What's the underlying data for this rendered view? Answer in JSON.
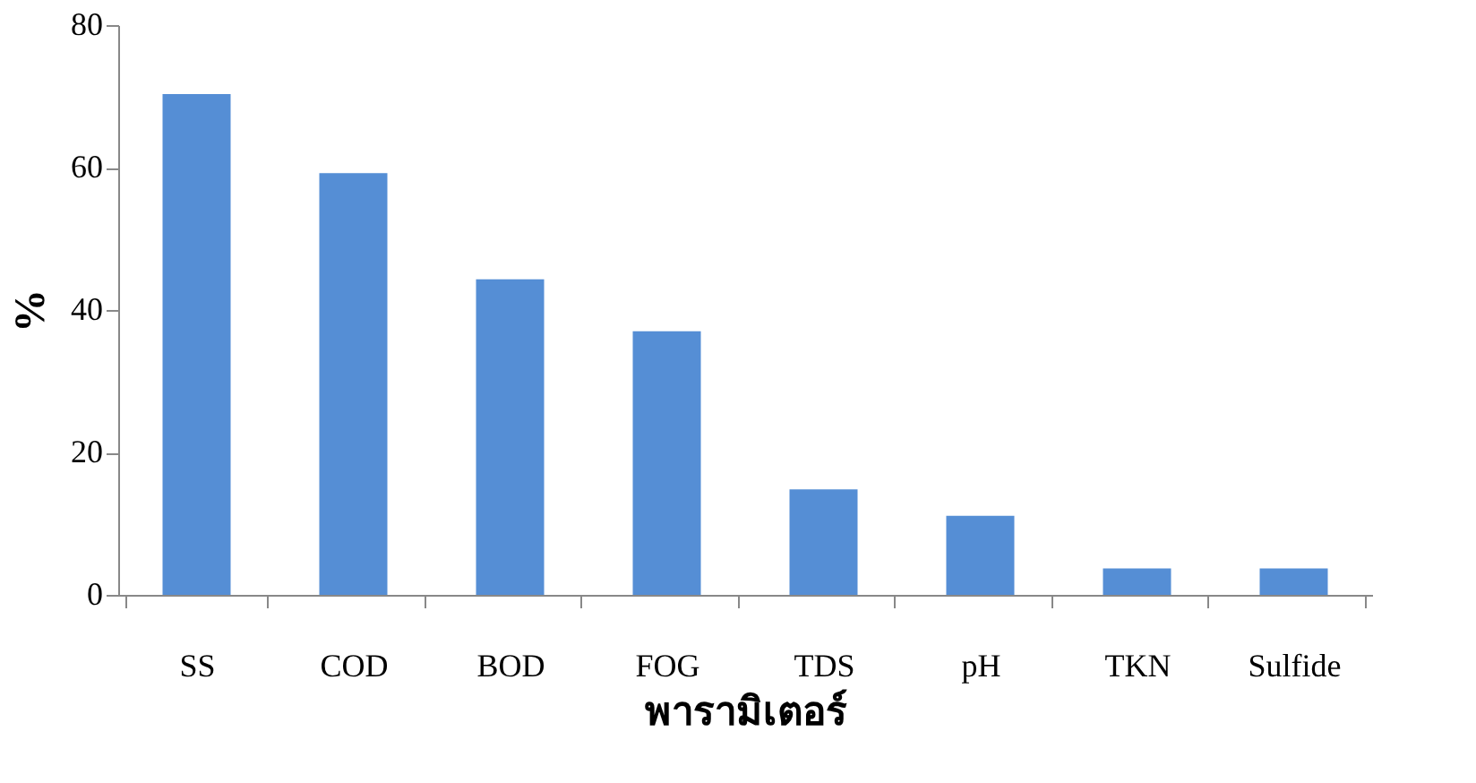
{
  "chart_data": {
    "type": "bar",
    "xlabel": "พารามิเตอร์",
    "ylabel": "%",
    "categories": [
      "SS",
      "COD",
      "BOD",
      "FOG",
      "TDS",
      "pH",
      "TKN",
      "Sulfide"
    ],
    "values": [
      70.3,
      59.2,
      44.3,
      37.0,
      14.8,
      11.1,
      3.7,
      3.7
    ],
    "color": "#558ed5",
    "ylim": [
      0,
      80
    ],
    "yticks": [
      0,
      20,
      40,
      60,
      80
    ],
    "grid": false
  }
}
